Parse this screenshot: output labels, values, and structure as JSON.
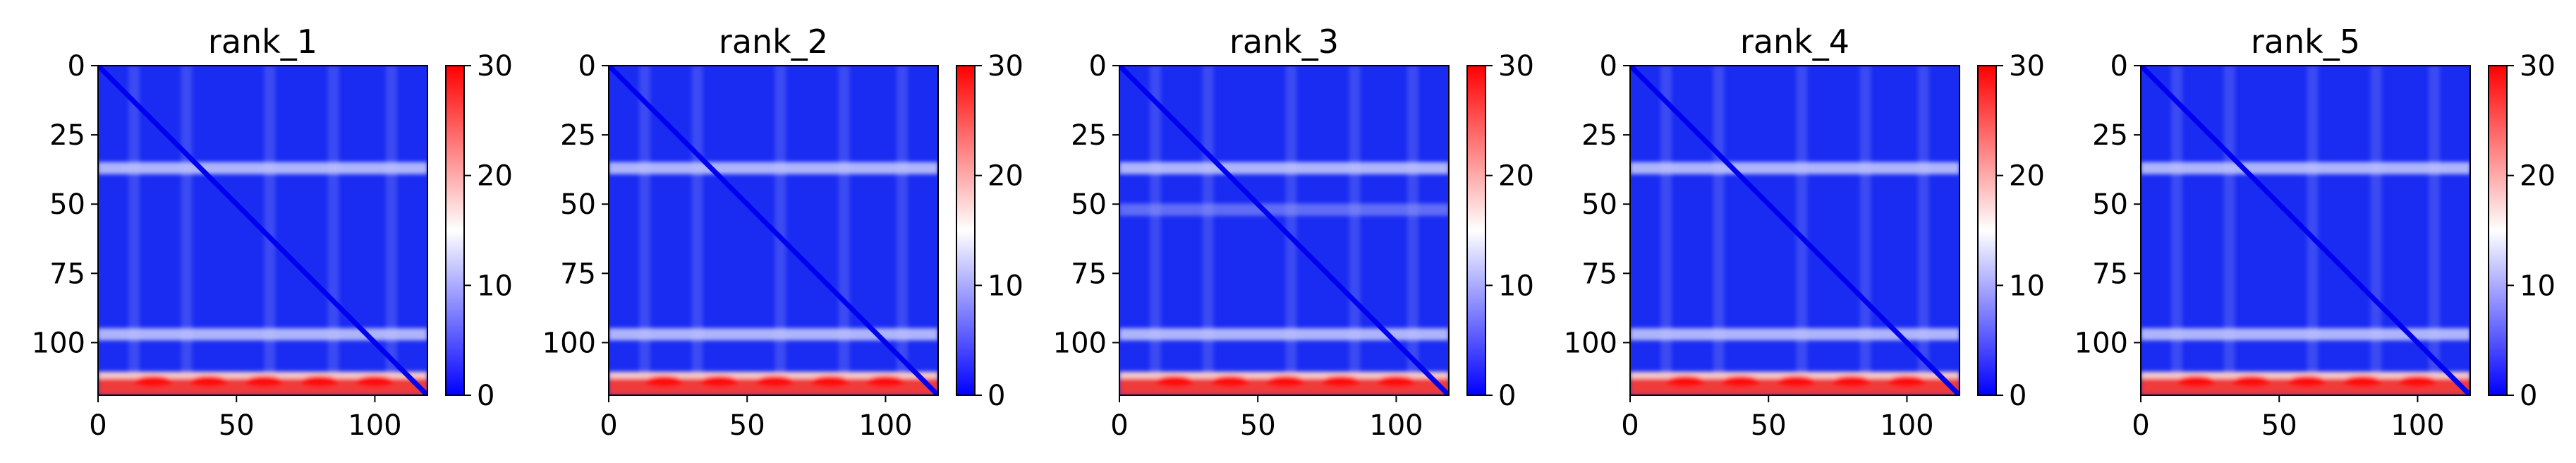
{
  "chart_data": [
    {
      "type": "heatmap",
      "title": "rank_1",
      "xlim": [
        0,
        119
      ],
      "ylim": [
        119,
        0
      ],
      "xticks": [
        0,
        50,
        100
      ],
      "yticks": [
        0,
        25,
        50,
        75,
        100
      ],
      "colorbar": {
        "range": [
          0,
          30
        ],
        "ticks": [
          0,
          10,
          20,
          30
        ],
        "cmap": "bwr"
      },
      "bands": {
        "row_stripes": [
          37,
          97
        ],
        "col_stripes": [
          13,
          32,
          62,
          85,
          106
        ],
        "bottom_rows": [
          113,
          119
        ]
      }
    },
    {
      "type": "heatmap",
      "title": "rank_2",
      "xlim": [
        0,
        119
      ],
      "ylim": [
        119,
        0
      ],
      "xticks": [
        0,
        50,
        100
      ],
      "yticks": [
        0,
        25,
        50,
        75,
        100
      ],
      "colorbar": {
        "range": [
          0,
          30
        ],
        "ticks": [
          0,
          10,
          20,
          30
        ],
        "cmap": "bwr"
      },
      "bands": {
        "row_stripes": [
          37,
          97
        ],
        "col_stripes": [
          13,
          32,
          62,
          85,
          106
        ],
        "bottom_rows": [
          113,
          119
        ]
      }
    },
    {
      "type": "heatmap",
      "title": "rank_3",
      "xlim": [
        0,
        119
      ],
      "ylim": [
        119,
        0
      ],
      "xticks": [
        0,
        50,
        100
      ],
      "yticks": [
        0,
        25,
        50,
        75,
        100
      ],
      "colorbar": {
        "range": [
          0,
          30
        ],
        "ticks": [
          0,
          10,
          20,
          30
        ],
        "cmap": "bwr"
      },
      "bands": {
        "row_stripes": [
          37,
          52,
          97
        ],
        "col_stripes": [
          13,
          32,
          62,
          85,
          106
        ],
        "bottom_rows": [
          113,
          119
        ]
      }
    },
    {
      "type": "heatmap",
      "title": "rank_4",
      "xlim": [
        0,
        119
      ],
      "ylim": [
        119,
        0
      ],
      "xticks": [
        0,
        50,
        100
      ],
      "yticks": [
        0,
        25,
        50,
        75,
        100
      ],
      "colorbar": {
        "range": [
          0,
          30
        ],
        "ticks": [
          0,
          10,
          20,
          30
        ],
        "cmap": "bwr"
      },
      "bands": {
        "row_stripes": [
          37,
          97
        ],
        "col_stripes": [
          13,
          32,
          62,
          85,
          106
        ],
        "bottom_rows": [
          113,
          119
        ]
      }
    },
    {
      "type": "heatmap",
      "title": "rank_5",
      "xlim": [
        0,
        119
      ],
      "ylim": [
        119,
        0
      ],
      "xticks": [
        0,
        50,
        100
      ],
      "yticks": [
        0,
        25,
        50,
        75,
        100
      ],
      "colorbar": {
        "range": [
          0,
          30
        ],
        "ticks": [
          0,
          10,
          20,
          30
        ],
        "cmap": "bwr"
      },
      "bands": {
        "row_stripes": [
          37,
          97
        ],
        "col_stripes": [
          13,
          32,
          62,
          85,
          106
        ],
        "bottom_rows": [
          113,
          119
        ]
      }
    }
  ]
}
